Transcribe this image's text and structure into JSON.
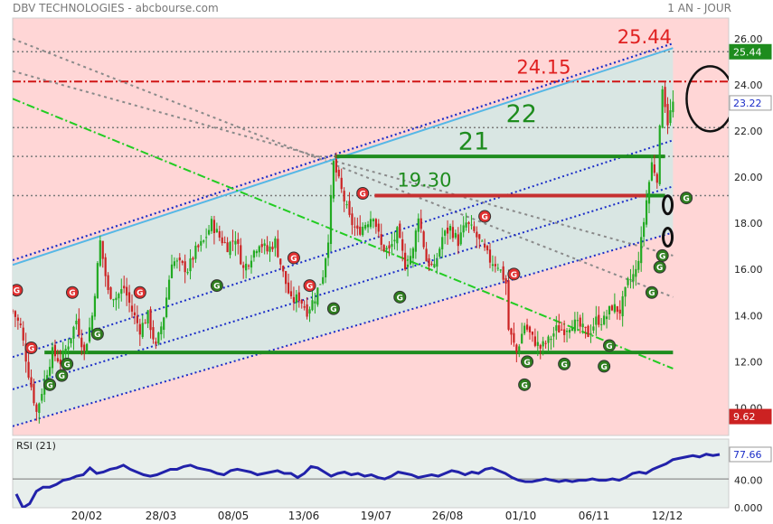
{
  "header": {
    "left": "DBV TECHNOLOGIES - abcbourse.com",
    "right": "1 AN - JOUR"
  },
  "colors": {
    "up": "#22aa22",
    "down": "#cc2222",
    "price_bg": "#ffd6d6",
    "channel_bg": "#d9e6e3",
    "badge_red": "#e03030",
    "badge_green": "#2e7d1e"
  },
  "chart_data": [
    {
      "type": "candlestick",
      "title": "",
      "ylim": [
        8.8,
        26.9
      ],
      "yticks": [
        "26.00",
        "24.00",
        "22.00",
        "20.00",
        "18.00",
        "16.00",
        "14.00",
        "12.00",
        "10.00"
      ],
      "xticks": [
        "20/02",
        "28/03",
        "08/05",
        "13/06",
        "19/07",
        "26/08",
        "01/10",
        "06/11",
        "12/12"
      ],
      "close_path": [
        [
          0,
          14.2
        ],
        [
          6,
          13.5
        ],
        [
          12,
          11.5
        ],
        [
          18,
          9.8
        ],
        [
          24,
          11.2
        ],
        [
          30,
          12.4
        ],
        [
          36,
          12.0
        ],
        [
          42,
          12.8
        ],
        [
          48,
          13.8
        ],
        [
          54,
          12.4
        ],
        [
          60,
          14.0
        ],
        [
          66,
          17.2
        ],
        [
          72,
          15.0
        ],
        [
          78,
          14.8
        ],
        [
          84,
          15.2
        ],
        [
          90,
          14.2
        ],
        [
          96,
          13.4
        ],
        [
          102,
          14.0
        ],
        [
          108,
          12.6
        ],
        [
          114,
          14.0
        ],
        [
          120,
          16.4
        ],
        [
          126,
          16.2
        ],
        [
          132,
          16.0
        ],
        [
          138,
          16.8
        ],
        [
          144,
          17.2
        ],
        [
          150,
          18.0
        ],
        [
          156,
          17.4
        ],
        [
          162,
          17.0
        ],
        [
          168,
          17.4
        ],
        [
          174,
          16.0
        ],
        [
          180,
          16.6
        ],
        [
          186,
          17.2
        ],
        [
          192,
          16.8
        ],
        [
          198,
          17.2
        ],
        [
          204,
          15.8
        ],
        [
          210,
          14.6
        ],
        [
          216,
          14.8
        ],
        [
          222,
          14.2
        ],
        [
          228,
          14.8
        ],
        [
          234,
          15.8
        ],
        [
          238,
          17.4
        ],
        [
          242,
          20.6
        ],
        [
          248,
          19.4
        ],
        [
          254,
          18.2
        ],
        [
          260,
          17.6
        ],
        [
          266,
          18.0
        ],
        [
          272,
          18.4
        ],
        [
          278,
          17.0
        ],
        [
          284,
          16.8
        ],
        [
          290,
          17.6
        ],
        [
          296,
          16.2
        ],
        [
          302,
          16.8
        ],
        [
          306,
          18.4
        ],
        [
          312,
          16.4
        ],
        [
          318,
          16.0
        ],
        [
          324,
          17.4
        ],
        [
          330,
          17.8
        ],
        [
          336,
          17.2
        ],
        [
          342,
          18.0
        ],
        [
          348,
          17.6
        ],
        [
          354,
          17.0
        ],
        [
          360,
          16.4
        ],
        [
          366,
          16.2
        ],
        [
          372,
          15.4
        ],
        [
          374,
          13.4
        ],
        [
          380,
          12.4
        ],
        [
          386,
          13.6
        ],
        [
          392,
          13.0
        ],
        [
          398,
          12.6
        ],
        [
          404,
          12.9
        ],
        [
          410,
          13.4
        ],
        [
          416,
          13.4
        ],
        [
          422,
          13.7
        ],
        [
          428,
          13.5
        ],
        [
          434,
          13.2
        ],
        [
          440,
          13.8
        ],
        [
          446,
          13.8
        ],
        [
          452,
          14.4
        ],
        [
          458,
          14.2
        ],
        [
          464,
          15.4
        ],
        [
          470,
          15.9
        ],
        [
          474,
          17.2
        ],
        [
          478,
          19.0
        ],
        [
          482,
          20.6
        ],
        [
          486,
          20.0
        ],
        [
          490,
          24.0
        ],
        [
          494,
          22.4
        ],
        [
          498,
          23.2
        ]
      ],
      "channels": [
        {
          "x": [
            0,
            498
          ],
          "y": [
            16.2,
            25.6
          ],
          "style": "solid",
          "color": "#55b8e6"
        },
        {
          "x": [
            0,
            498
          ],
          "y": [
            12.2,
            21.6
          ],
          "style": "dotted",
          "color": "#1b2dc8"
        },
        {
          "x": [
            0,
            498
          ],
          "y": [
            9.2,
            17.6
          ],
          "style": "dotted",
          "color": "#1b2dc8"
        }
      ],
      "gray_trends": [
        {
          "x": [
            0,
            498
          ],
          "y": [
            26.0,
            14.8
          ]
        },
        {
          "x": [
            0,
            498
          ],
          "y": [
            24.6,
            16.6
          ]
        }
      ],
      "green_dashdot": {
        "x": [
          0,
          498
        ],
        "y": [
          23.4,
          11.7
        ]
      },
      "hlines": [
        {
          "y": 25.44,
          "color": "#7a7a7a",
          "style": "dotted"
        },
        {
          "y": 24.15,
          "color": "#d01515",
          "style": "dashdot"
        },
        {
          "y": 22.15,
          "color": "#7a7a7a",
          "style": "dotted"
        },
        {
          "y": 20.9,
          "color": "#7a7a7a",
          "style": "dotted"
        },
        {
          "y": 19.2,
          "color": "#7a7a7a",
          "style": "dotted"
        }
      ],
      "thick_segments": [
        {
          "x": [
            243,
            492
          ],
          "y": 20.9,
          "color": "#1e8c1e"
        },
        {
          "x": [
            275,
            492
          ],
          "y": 19.2,
          "color": "#1e8c1e"
        },
        {
          "x": [
            273,
            478
          ],
          "y": 19.2,
          "color": "#c63030"
        },
        {
          "x": [
            24,
            498
          ],
          "y": 12.4,
          "color": "#1e8c1e"
        }
      ],
      "labels": [
        {
          "text": "25.44",
          "x": 456,
          "y": 25.8,
          "color": "#e02020"
        },
        {
          "text": "24.15",
          "x": 380,
          "y": 24.5,
          "color": "#e02020"
        },
        {
          "text": "22",
          "x": 372,
          "y": 22.4,
          "color": "#1e8c1e"
        },
        {
          "text": "21",
          "x": 336,
          "y": 21.2,
          "color": "#1e8c1e"
        },
        {
          "text": "19.30",
          "x": 290,
          "y": 19.6,
          "color": "#1e8c1e"
        }
      ],
      "badges": [
        {
          "x": 3,
          "y": 15.1,
          "t": "r"
        },
        {
          "x": 14,
          "y": 12.6,
          "t": "r"
        },
        {
          "x": 45,
          "y": 15.0,
          "t": "r"
        },
        {
          "x": 96,
          "y": 15.0,
          "t": "r"
        },
        {
          "x": 212,
          "y": 16.5,
          "t": "r"
        },
        {
          "x": 224,
          "y": 15.3,
          "t": "r"
        },
        {
          "x": 264,
          "y": 19.3,
          "t": "r"
        },
        {
          "x": 356,
          "y": 18.3,
          "t": "r"
        },
        {
          "x": 378,
          "y": 15.8,
          "t": "r"
        },
        {
          "x": 28,
          "y": 11.0,
          "t": "g"
        },
        {
          "x": 37,
          "y": 11.4,
          "t": "g"
        },
        {
          "x": 41,
          "y": 11.9,
          "t": "g"
        },
        {
          "x": 64,
          "y": 13.2,
          "t": "g"
        },
        {
          "x": 154,
          "y": 15.3,
          "t": "g"
        },
        {
          "x": 242,
          "y": 14.3,
          "t": "g"
        },
        {
          "x": 292,
          "y": 14.8,
          "t": "g"
        },
        {
          "x": 386,
          "y": 11.0,
          "t": "g"
        },
        {
          "x": 388,
          "y": 12.0,
          "t": "g"
        },
        {
          "x": 416,
          "y": 11.9,
          "t": "g"
        },
        {
          "x": 446,
          "y": 11.8,
          "t": "g"
        },
        {
          "x": 450,
          "y": 12.7,
          "t": "g"
        },
        {
          "x": 482,
          "y": 15.0,
          "t": "g"
        },
        {
          "x": 488,
          "y": 16.1,
          "t": "g"
        },
        {
          "x": 490,
          "y": 16.6,
          "t": "g"
        },
        {
          "x": 508,
          "y": 19.1,
          "t": "g"
        }
      ],
      "ovals": [
        {
          "x": 494,
          "y": 17.4
        },
        {
          "x": 494,
          "y": 18.8
        },
        {
          "x": 526,
          "y": 23.4,
          "big": true
        }
      ],
      "price_tags": [
        {
          "value": "25.44",
          "y": 25.44,
          "bg": "#1e8c1e"
        },
        {
          "value": "23.22",
          "y": 23.22,
          "bg": "#ffffff",
          "fg": "#1b2dc8"
        },
        {
          "value": "9.62",
          "y": 9.62,
          "bg": "#cc2222"
        }
      ]
    },
    {
      "type": "line",
      "title": "RSI (21)",
      "ylim": [
        0,
        100
      ],
      "yticks": [
        "80.00",
        "40.00",
        "0.000"
      ],
      "current": "77.66",
      "reference": 42,
      "values": [
        20,
        0,
        6,
        24,
        30,
        30,
        34,
        40,
        42,
        46,
        48,
        58,
        50,
        52,
        56,
        58,
        62,
        56,
        52,
        48,
        46,
        48,
        52,
        56,
        56,
        60,
        62,
        58,
        56,
        54,
        50,
        48,
        54,
        56,
        54,
        52,
        48,
        50,
        52,
        54,
        50,
        50,
        44,
        50,
        60,
        58,
        52,
        46,
        50,
        52,
        48,
        50,
        46,
        48,
        44,
        42,
        46,
        52,
        50,
        48,
        44,
        46,
        48,
        46,
        50,
        54,
        52,
        48,
        52,
        50,
        56,
        58,
        54,
        50,
        44,
        40,
        38,
        38,
        40,
        42,
        40,
        38,
        40,
        38,
        40,
        40,
        42,
        40,
        40,
        42,
        40,
        44,
        50,
        52,
        50,
        56,
        60,
        64,
        70,
        72,
        74,
        76,
        74,
        78,
        76,
        77.66
      ]
    }
  ]
}
